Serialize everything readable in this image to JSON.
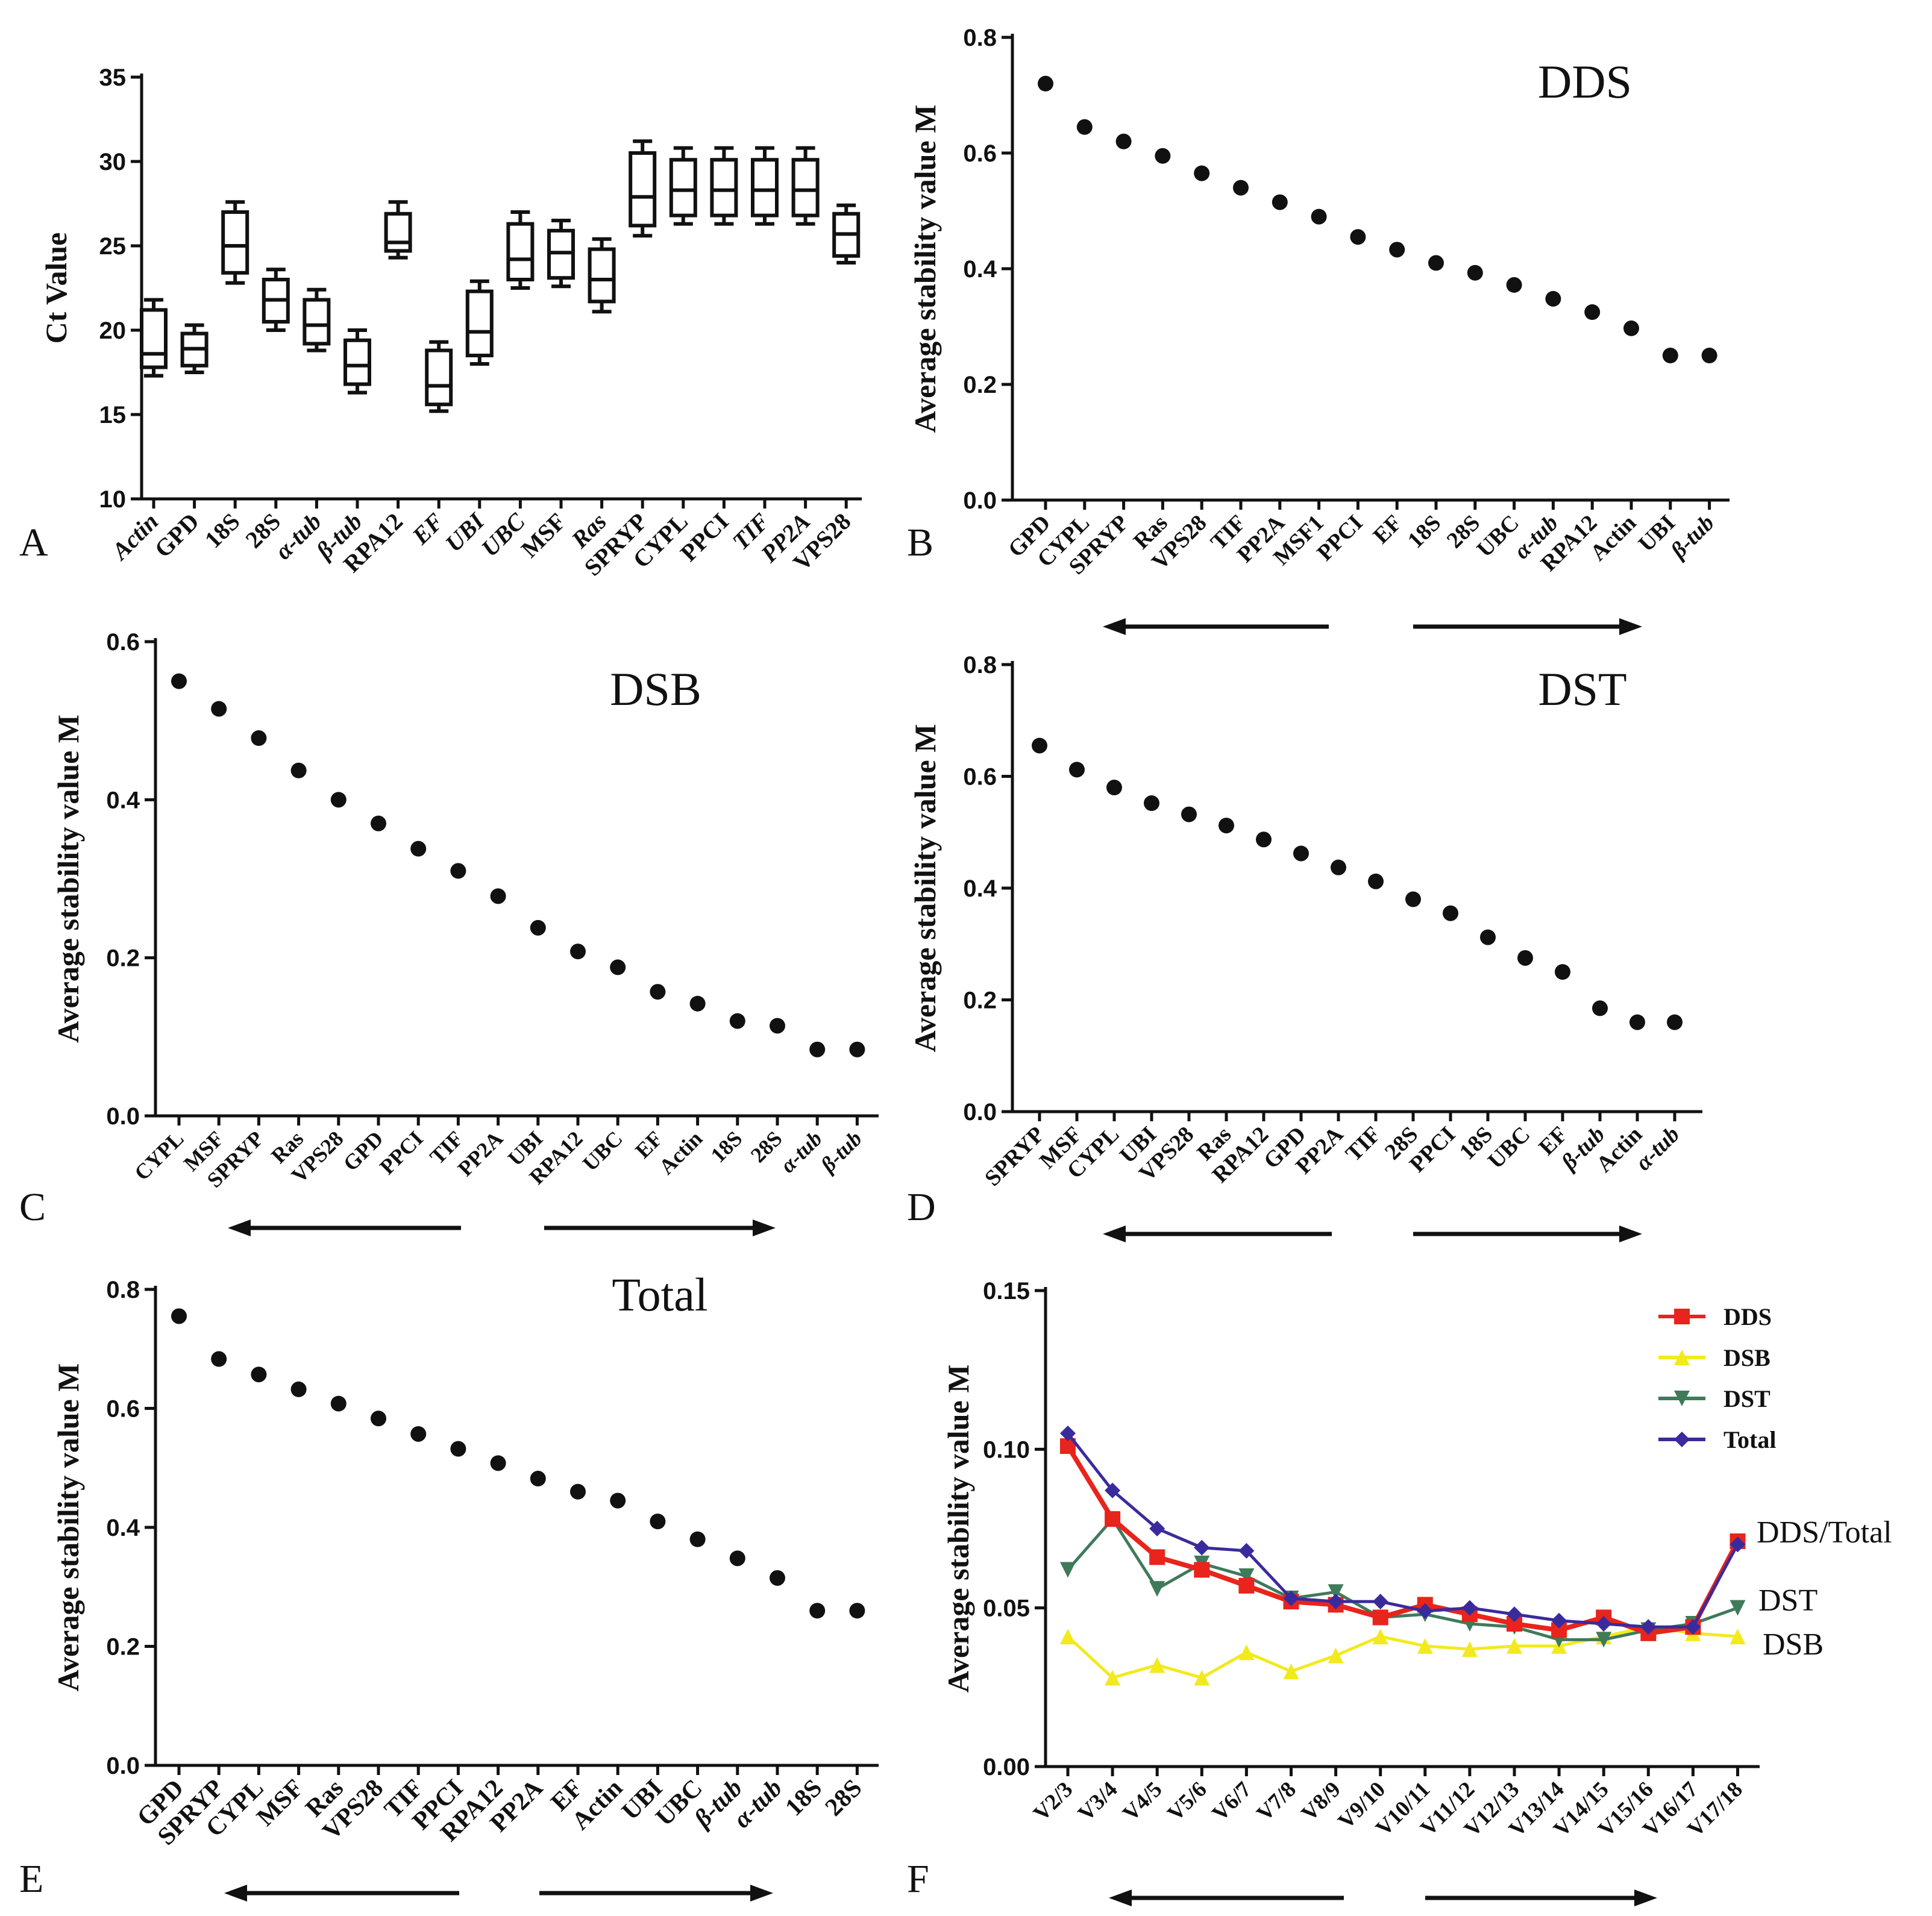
{
  "chart_data": [
    {
      "panel": "A",
      "type": "box",
      "title": "",
      "ylabel": "Ct Value",
      "ylim": [
        10,
        35
      ],
      "yticks": [
        "10",
        "15",
        "20",
        "25",
        "30",
        "35"
      ],
      "categories": [
        "Actin",
        "GPD",
        "18S",
        "28S",
        "α-tub",
        "β-tub",
        "RPA12",
        "EF",
        "UBI",
        "UBC",
        "MSF",
        "Ras",
        "SPRYP",
        "CYPL",
        "PPCI",
        "TIF",
        "PP2A",
        "VPS28"
      ],
      "italic_categories": [
        "Actin",
        "α-tub",
        "β-tub",
        "EF",
        "Ras",
        "TIF",
        "PP2A",
        "UBI",
        "UBC"
      ],
      "boxes": [
        {
          "min": 17.3,
          "q1": 17.8,
          "median": 18.6,
          "q3": 21.2,
          "max": 21.8
        },
        {
          "min": 17.5,
          "q1": 17.9,
          "median": 18.9,
          "q3": 19.8,
          "max": 20.3
        },
        {
          "min": 22.8,
          "q1": 23.4,
          "median": 25.0,
          "q3": 27.0,
          "max": 27.6
        },
        {
          "min": 20.0,
          "q1": 20.5,
          "median": 21.8,
          "q3": 23.0,
          "max": 23.6
        },
        {
          "min": 18.8,
          "q1": 19.2,
          "median": 20.3,
          "q3": 21.8,
          "max": 22.4
        },
        {
          "min": 16.3,
          "q1": 16.8,
          "median": 17.9,
          "q3": 19.4,
          "max": 20.0
        },
        {
          "min": 24.3,
          "q1": 24.7,
          "median": 25.2,
          "q3": 26.9,
          "max": 27.6
        },
        {
          "min": 15.2,
          "q1": 15.6,
          "median": 16.7,
          "q3": 18.8,
          "max": 19.3
        },
        {
          "min": 18.0,
          "q1": 18.5,
          "median": 19.9,
          "q3": 22.3,
          "max": 22.9
        },
        {
          "min": 22.5,
          "q1": 23.0,
          "median": 24.2,
          "q3": 26.3,
          "max": 27.0
        },
        {
          "min": 22.6,
          "q1": 23.1,
          "median": 24.6,
          "q3": 25.9,
          "max": 26.5
        },
        {
          "min": 21.1,
          "q1": 21.7,
          "median": 23.0,
          "q3": 24.8,
          "max": 25.4
        },
        {
          "min": 25.6,
          "q1": 26.2,
          "median": 27.9,
          "q3": 30.5,
          "max": 31.2
        },
        {
          "min": 26.3,
          "q1": 26.8,
          "median": 28.3,
          "q3": 30.1,
          "max": 30.8
        },
        {
          "min": 26.3,
          "q1": 26.8,
          "median": 28.3,
          "q3": 30.1,
          "max": 30.8
        },
        {
          "min": 26.3,
          "q1": 26.8,
          "median": 28.3,
          "q3": 30.1,
          "max": 30.8
        },
        {
          "min": 26.3,
          "q1": 26.8,
          "median": 28.3,
          "q3": 30.1,
          "max": 30.8
        },
        {
          "min": 24.0,
          "q1": 24.4,
          "median": 25.7,
          "q3": 26.9,
          "max": 27.4
        }
      ]
    },
    {
      "panel": "B",
      "type": "scatter",
      "title": "DDS",
      "ylabel": "Average stability value M",
      "ylim": [
        0,
        0.8
      ],
      "yticks": [
        "0.0",
        "0.2",
        "0.4",
        "0.6",
        "0.8"
      ],
      "categories": [
        "GPD",
        "CYPL",
        "SPRYP",
        "Ras",
        "VPS28",
        "TIF",
        "PP2A",
        "MSF1",
        "PPCI",
        "EF",
        "18S",
        "28S",
        "UBC",
        "α-tub",
        "RPA12",
        "Actin",
        "UBI",
        "β-tub"
      ],
      "italic_categories": [
        "α-tub",
        "β-tub"
      ],
      "values": [
        0.72,
        0.645,
        0.62,
        0.595,
        0.565,
        0.54,
        0.515,
        0.49,
        0.455,
        0.433,
        0.41,
        0.393,
        0.372,
        0.348,
        0.325,
        0.297,
        0.25,
        0.25
      ]
    },
    {
      "panel": "C",
      "type": "scatter",
      "title": "DSB",
      "ylabel": "Average stability value M",
      "ylim": [
        0,
        0.6
      ],
      "yticks": [
        "0.0",
        "0.2",
        "0.4",
        "0.6"
      ],
      "categories": [
        "CYPL",
        "MSF",
        "SPRYP",
        "Ras",
        "VPS28",
        "GPD",
        "PPCI",
        "TIF",
        "PP2A",
        "UBI",
        "RPA12",
        "UBC",
        "EF",
        "Actin",
        "18S",
        "28S",
        "α-tub",
        "β-tub"
      ],
      "italic_categories": [
        "α-tub",
        "β-tub"
      ],
      "values": [
        0.55,
        0.515,
        0.478,
        0.437,
        0.4,
        0.37,
        0.338,
        0.31,
        0.278,
        0.238,
        0.208,
        0.188,
        0.157,
        0.142,
        0.12,
        0.114,
        0.084,
        0.084
      ]
    },
    {
      "panel": "D",
      "type": "scatter",
      "title": "DST",
      "ylabel": "Average stability value M",
      "ylim": [
        0,
        0.8
      ],
      "yticks": [
        "0.0",
        "0.2",
        "0.4",
        "0.6",
        "0.8"
      ],
      "categories": [
        "SPRYP",
        "MSF",
        "CYPL",
        "UBI",
        "VPS28",
        "Ras",
        "RPA12",
        "GPD",
        "PP2A",
        "TIF",
        "28S",
        "PPCI",
        "18S",
        "UBC",
        "EF",
        "β-tub",
        "Actin",
        "α-tub"
      ],
      "italic_categories": [
        "α-tub",
        "β-tub"
      ],
      "values": [
        0.655,
        0.612,
        0.58,
        0.552,
        0.532,
        0.512,
        0.487,
        0.462,
        0.437,
        0.412,
        0.38,
        0.355,
        0.312,
        0.275,
        0.25,
        0.185,
        0.16,
        0.16
      ]
    },
    {
      "panel": "E",
      "type": "scatter",
      "title": "Total",
      "ylabel": "Average stability value M",
      "ylim": [
        0,
        0.8
      ],
      "yticks": [
        "0.0",
        "0.2",
        "0.4",
        "0.6",
        "0.8"
      ],
      "categories": [
        "GPD",
        "SPRYP",
        "CYPL",
        "MSF",
        "Ras",
        "VPS28",
        "TIF",
        "PPCI",
        "RPA12",
        "PP2A",
        "EF",
        "Actin",
        "UBI",
        "UBC",
        "β-tub",
        "α-tub",
        "18S",
        "28S"
      ],
      "italic_categories": [
        "α-tub",
        "β-tub"
      ],
      "values": [
        0.755,
        0.683,
        0.657,
        0.632,
        0.608,
        0.583,
        0.557,
        0.532,
        0.508,
        0.482,
        0.46,
        0.445,
        0.41,
        0.38,
        0.348,
        0.315,
        0.26,
        0.26
      ]
    },
    {
      "panel": "F",
      "type": "line",
      "title": "",
      "ylabel": "Average stability value M",
      "ylim": [
        0,
        0.15
      ],
      "yticks": [
        "0.00",
        "0.05",
        "0.10",
        "0.15"
      ],
      "categories": [
        "V2/3",
        "V3/4",
        "V4/5",
        "V5/6",
        "V6/7",
        "V7/8",
        "V8/9",
        "V9/10",
        "V10/11",
        "V11/12",
        "V12/13",
        "V13/14",
        "V14/15",
        "V15/16",
        "V16/17",
        "V17/18"
      ],
      "series": [
        {
          "name": "DDS",
          "color": "#e8241c",
          "marker": "square",
          "values": [
            0.101,
            0.078,
            0.066,
            0.062,
            0.057,
            0.052,
            0.051,
            0.047,
            0.051,
            0.048,
            0.045,
            0.043,
            0.047,
            0.042,
            0.044,
            0.071
          ]
        },
        {
          "name": "DSB",
          "color": "#f2ea1c",
          "marker": "triangle-up",
          "values": [
            0.041,
            0.028,
            0.032,
            0.028,
            0.036,
            0.03,
            0.035,
            0.041,
            0.038,
            0.037,
            0.038,
            0.038,
            0.041,
            0.044,
            0.042,
            0.041
          ]
        },
        {
          "name": "DST",
          "color": "#3f7a5a",
          "marker": "triangle-down",
          "values": [
            0.062,
            0.078,
            0.056,
            0.064,
            0.06,
            0.053,
            0.055,
            0.047,
            0.048,
            0.045,
            0.044,
            0.04,
            0.04,
            0.043,
            0.045,
            0.05
          ]
        },
        {
          "name": "Total",
          "color": "#3a2b9c",
          "marker": "diamond",
          "values": [
            0.105,
            0.087,
            0.075,
            0.069,
            0.068,
            0.053,
            0.052,
            0.052,
            0.049,
            0.05,
            0.048,
            0.046,
            0.045,
            0.044,
            0.044,
            0.07
          ]
        }
      ],
      "end_labels": [
        "DDS/Total",
        "DST",
        "DSB"
      ]
    }
  ],
  "panel_letters": [
    "A",
    "B",
    "C",
    "D",
    "E",
    "F"
  ],
  "colors": {
    "ink": "#111111",
    "background": "#ffffff"
  }
}
